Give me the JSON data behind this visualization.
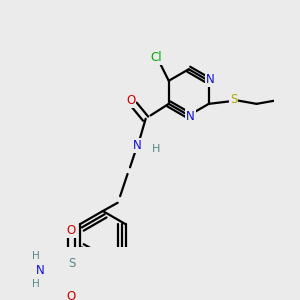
{
  "background_color": "#ebebeb",
  "colors": {
    "N": "#1010cc",
    "O": "#cc0000",
    "S_yellow": "#aaaa00",
    "S_gray": "#558888",
    "Cl": "#00aa00",
    "C": "#000000",
    "H": "#558888",
    "bond": "#000000"
  }
}
